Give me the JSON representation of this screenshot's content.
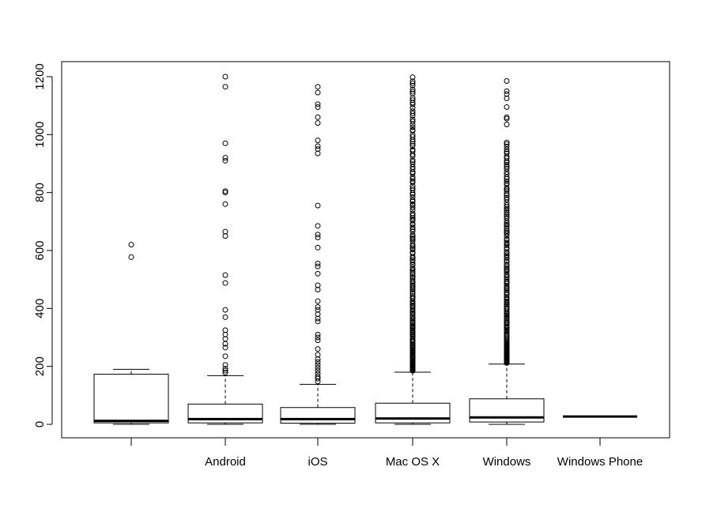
{
  "chart_data": {
    "type": "boxplot",
    "title": "",
    "xlabel": "",
    "ylabel": "",
    "ylim": [
      -48,
      1242
    ],
    "y_ticks": [
      0,
      200,
      400,
      600,
      800,
      1000,
      1200
    ],
    "y_tick_labels": [
      "0",
      "200",
      "400",
      "600",
      "800",
      "1000",
      "1200"
    ],
    "grid": false,
    "legend": "none",
    "categories": [
      "",
      "Android",
      "iOS",
      "Mac OS X",
      "Windows",
      "Windows Phone"
    ],
    "boxes": [
      {
        "category": "",
        "min": 0,
        "q1": 5,
        "median": 12,
        "q3": 173,
        "max": 190,
        "outliers": [
          577,
          620
        ]
      },
      {
        "category": "Android",
        "min": 0,
        "q1": 5,
        "median": 18,
        "q3": 70,
        "max": 168,
        "outliers": [
          178,
          185,
          192,
          205,
          235,
          265,
          278,
          295,
          310,
          325,
          370,
          395,
          488,
          515,
          650,
          665,
          760,
          800,
          805,
          910,
          920,
          970,
          1165,
          1200
        ]
      },
      {
        "category": "iOS",
        "min": 0,
        "q1": 4,
        "median": 18,
        "q3": 58,
        "max": 138,
        "outliers": [
          148,
          158,
          165,
          175,
          185,
          195,
          205,
          215,
          225,
          240,
          260,
          290,
          300,
          310,
          355,
          365,
          380,
          395,
          405,
          425,
          465,
          480,
          520,
          545,
          555,
          610,
          645,
          655,
          685,
          755,
          935,
          950,
          960,
          980,
          1040,
          1060,
          1095,
          1105,
          1145,
          1165
        ]
      },
      {
        "category": "Mac OS X",
        "min": 0,
        "q1": 5,
        "median": 20,
        "q3": 73,
        "max": 180,
        "outliers_range": [
          185,
          1200
        ],
        "outlier_count": 170
      },
      {
        "category": "Windows",
        "min": 0,
        "q1": 8,
        "median": 24,
        "q3": 88,
        "max": 208,
        "outliers_range": [
          212,
          980
        ],
        "outlier_count": 150,
        "extra_outliers": [
          1035,
          1055,
          1060,
          1095,
          1125,
          1140,
          1150,
          1185
        ]
      },
      {
        "category": "Windows Phone",
        "min": 27,
        "q1": 27,
        "median": 27,
        "q3": 27,
        "max": 27,
        "outliers": []
      }
    ]
  }
}
